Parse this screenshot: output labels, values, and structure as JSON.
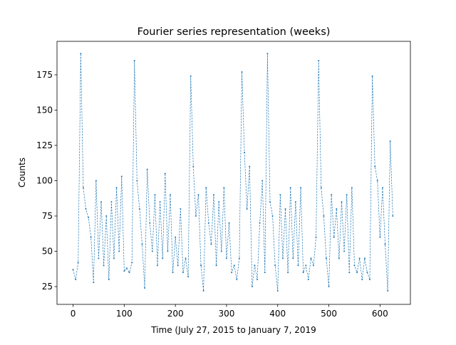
{
  "chart_data": {
    "type": "line",
    "title": "Fourier series representation (weeks)",
    "xlabel": "Time (July 27, 2015 to January 7, 2019",
    "ylabel": "Counts",
    "color": "#1f77b4",
    "x": [
      0,
      5,
      10,
      15,
      20,
      25,
      30,
      35,
      40,
      45,
      50,
      55,
      60,
      65,
      70,
      75,
      80,
      85,
      90,
      95,
      100,
      105,
      110,
      115,
      120,
      125,
      130,
      135,
      140,
      145,
      150,
      155,
      160,
      165,
      170,
      175,
      180,
      185,
      190,
      195,
      200,
      205,
      210,
      215,
      220,
      225,
      230,
      235,
      240,
      245,
      250,
      255,
      260,
      265,
      270,
      275,
      280,
      285,
      290,
      295,
      300,
      305,
      310,
      315,
      320,
      325,
      330,
      335,
      340,
      345,
      350,
      355,
      360,
      365,
      370,
      375,
      380,
      385,
      390,
      395,
      400,
      405,
      410,
      415,
      420,
      425,
      430,
      435,
      440,
      445,
      450,
      455,
      460,
      465,
      470,
      475,
      480,
      485,
      490,
      495,
      500,
      505,
      510,
      515,
      520,
      525,
      530,
      535,
      540,
      545,
      550,
      555,
      560,
      565,
      570,
      575,
      580,
      585,
      590,
      595,
      600,
      605,
      610,
      615,
      620,
      625
    ],
    "values": [
      37,
      30,
      42,
      190,
      95,
      80,
      74,
      60,
      28,
      100,
      45,
      85,
      40,
      75,
      30,
      85,
      45,
      95,
      50,
      103,
      36,
      38,
      35,
      42,
      185,
      100,
      80,
      55,
      24,
      108,
      70,
      50,
      90,
      40,
      85,
      45,
      105,
      50,
      90,
      35,
      60,
      40,
      80,
      35,
      45,
      32,
      174,
      110,
      75,
      90,
      40,
      22,
      95,
      70,
      55,
      90,
      40,
      85,
      50,
      95,
      45,
      70,
      35,
      40,
      30,
      45,
      177,
      120,
      80,
      110,
      25,
      40,
      30,
      70,
      100,
      35,
      190,
      85,
      75,
      40,
      22,
      90,
      45,
      80,
      35,
      95,
      45,
      85,
      40,
      95,
      35,
      40,
      30,
      45,
      40,
      60,
      185,
      95,
      75,
      45,
      25,
      90,
      60,
      80,
      45,
      85,
      50,
      90,
      35,
      95,
      40,
      35,
      45,
      30,
      45,
      35,
      30,
      174,
      110,
      100,
      60,
      95,
      55,
      22,
      128,
      75
    ],
    "xlim": [
      -31.4,
      659.4
    ],
    "ylim": [
      12.4,
      198.7
    ],
    "xticks": [
      0,
      100,
      200,
      300,
      400,
      500,
      600
    ],
    "yticks": [
      25,
      50,
      75,
      100,
      125,
      150,
      175
    ]
  }
}
